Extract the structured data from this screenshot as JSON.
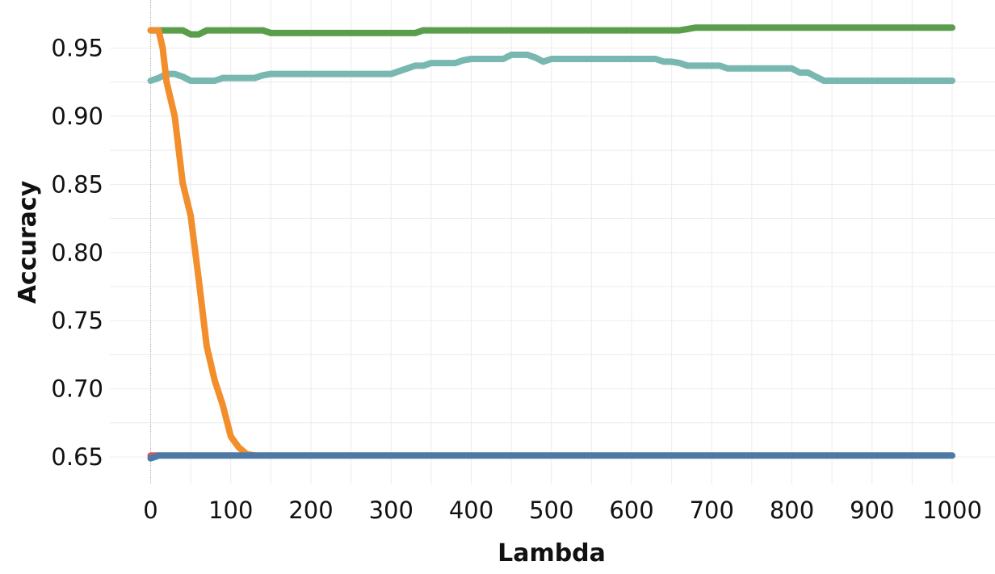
{
  "chart_data": {
    "type": "line",
    "title": "",
    "xlabel": "Lambda",
    "ylabel": "Accuracy",
    "xlim": [
      -50,
      1050
    ],
    "ylim": [
      0.63,
      0.97
    ],
    "x_ticks": [
      0,
      100,
      200,
      300,
      400,
      500,
      600,
      700,
      800,
      900,
      1000
    ],
    "x_tick_labels": [
      "0",
      "100",
      "200",
      "300",
      "400",
      "500",
      "600",
      "700",
      "800",
      "900",
      "1000"
    ],
    "y_ticks": [
      0.65,
      0.7,
      0.75,
      0.8,
      0.85,
      0.9,
      0.95
    ],
    "y_tick_labels": [
      "0.65",
      "0.70",
      "0.75",
      "0.80",
      "0.85",
      "0.90",
      "0.95"
    ],
    "grid": true,
    "legend": "none",
    "series": [
      {
        "color": "#5a9e4b",
        "x": [
          0,
          10,
          20,
          30,
          40,
          50,
          60,
          70,
          80,
          90,
          100,
          110,
          120,
          130,
          140,
          150,
          160,
          170,
          180,
          190,
          200,
          300,
          330,
          340,
          350,
          400,
          500,
          600,
          660,
          670,
          680,
          700,
          800,
          900,
          1000
        ],
        "y": [
          0.963,
          0.963,
          0.963,
          0.963,
          0.963,
          0.96,
          0.96,
          0.963,
          0.963,
          0.963,
          0.963,
          0.963,
          0.963,
          0.963,
          0.963,
          0.961,
          0.961,
          0.961,
          0.961,
          0.961,
          0.961,
          0.961,
          0.961,
          0.963,
          0.963,
          0.963,
          0.963,
          0.963,
          0.963,
          0.964,
          0.965,
          0.965,
          0.965,
          0.965,
          0.965
        ]
      },
      {
        "color": "#79b8b0",
        "x": [
          0,
          10,
          20,
          30,
          40,
          50,
          60,
          70,
          80,
          90,
          100,
          110,
          120,
          130,
          140,
          150,
          200,
          250,
          300,
          310,
          320,
          330,
          340,
          350,
          360,
          370,
          380,
          390,
          400,
          420,
          440,
          450,
          460,
          470,
          480,
          490,
          500,
          550,
          600,
          620,
          630,
          640,
          650,
          660,
          670,
          680,
          700,
          710,
          720,
          750,
          780,
          800,
          810,
          820,
          830,
          840,
          900,
          1000
        ],
        "y": [
          0.926,
          0.928,
          0.931,
          0.931,
          0.929,
          0.926,
          0.926,
          0.926,
          0.926,
          0.928,
          0.928,
          0.928,
          0.928,
          0.928,
          0.93,
          0.931,
          0.931,
          0.931,
          0.931,
          0.933,
          0.935,
          0.937,
          0.937,
          0.939,
          0.939,
          0.939,
          0.939,
          0.941,
          0.942,
          0.942,
          0.942,
          0.945,
          0.945,
          0.945,
          0.943,
          0.94,
          0.942,
          0.942,
          0.942,
          0.942,
          0.942,
          0.94,
          0.94,
          0.939,
          0.937,
          0.937,
          0.937,
          0.937,
          0.935,
          0.935,
          0.935,
          0.935,
          0.932,
          0.932,
          0.929,
          0.926,
          0.926,
          0.926
        ]
      },
      {
        "color": "#f28e2b",
        "x": [
          0,
          10,
          15,
          20,
          30,
          40,
          50,
          60,
          70,
          80,
          90,
          100,
          110,
          120,
          130
        ],
        "y": [
          0.963,
          0.963,
          0.95,
          0.925,
          0.9,
          0.851,
          0.827,
          0.78,
          0.731,
          0.706,
          0.688,
          0.665,
          0.657,
          0.652,
          0.651
        ]
      },
      {
        "color": "#e15759",
        "x": [
          0,
          10
        ],
        "y": [
          0.651,
          0.651
        ]
      },
      {
        "color": "#4e79a7",
        "x": [
          0,
          10,
          20,
          100,
          200,
          300,
          400,
          500,
          600,
          700,
          800,
          900,
          1000
        ],
        "y": [
          0.649,
          0.651,
          0.651,
          0.651,
          0.651,
          0.651,
          0.651,
          0.651,
          0.651,
          0.651,
          0.651,
          0.651,
          0.651
        ]
      }
    ]
  }
}
